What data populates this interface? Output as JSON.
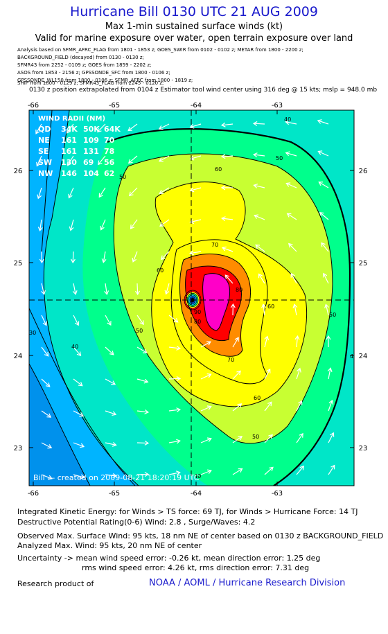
{
  "header": {
    "title": "Hurricane Bill 0130 UTC 21 AUG 2009",
    "subtitle": "Max 1-min sustained surface winds (kt)",
    "validity": "Valid for marine exposure over water, open terrain exposure over land"
  },
  "analysis_sources": [
    "Analysis based on  SFMR_AFRC_FLAG from 1801 - 1853 z;  GOES_SWIR from 0102 - 0102 z;  METAR from 1800 - 2200 z;",
    "BACKGROUND_FIELD (decayed) from 0130 - 0130 z;",
    "SFMR43 from 2252 - 0109 z;  GOES from 1859 - 2202 z;",
    "ASOS from 1853 - 2156 z;  GPSSONDE_SFC from 1800 - 0106 z;",
    "GPSSONDE_WL150 from 1800 - 0106 z;  SFMR_AFRC from 1800 - 1819 z;",
    "SHIP from 1800 - 0129 z;  SFMR43_FLAG from 2245 - 0120 z;"
  ],
  "position_note": "0130 z position extrapolated from 0104 z Estimator tool wind center using 316 deg @ 15 kts; mslp = 948.0 mb",
  "map": {
    "lon_ticks": [
      "-66",
      "-65",
      "-64",
      "-63"
    ],
    "lat_ticks": [
      "26",
      "25",
      "24",
      "23"
    ],
    "center": {
      "lon": -64.06,
      "lat": 24.6
    },
    "wind_radii_table": [
      [
        "WIND RADII (NM)"
      ],
      [
        "QD",
        "34K",
        "50K",
        "64K"
      ],
      [
        "NE",
        "161",
        "109",
        "70"
      ],
      [
        "SE",
        "161",
        "131",
        "78"
      ],
      [
        "SW",
        "130",
        "69",
        "56"
      ],
      [
        "NW",
        "146",
        "104",
        "62"
      ]
    ],
    "contour_labels": [
      "40",
      "40",
      "40",
      "40",
      "50",
      "50",
      "50",
      "50",
      "50",
      "60",
      "60",
      "60",
      "60",
      "70",
      "70",
      "80",
      "80",
      "90",
      "30"
    ],
    "credit": "Bill — created on 2009-08-21 18:20:19 UTC",
    "colors": {
      "band_30": "#00b4ff",
      "band_40": "#00e6c8",
      "band_50": "#00ff8c",
      "band_60": "#c8ff32",
      "band_70": "#ffff00",
      "band_80": "#ff8c00",
      "band_90": "#ff0000",
      "band_100": "#ff00c8"
    }
  },
  "footer": {
    "ike": "Integrated Kinetic Energy:  for Winds > TS force: 69 TJ,  for Winds > Hurricane Force: 14 TJ",
    "dpr": "Destructive Potential Rating(0-6)   Wind: 2.8 , Surge/Waves: 4.2",
    "observed": "Observed Max. Surface Wind: 95 kts, 18 nm NE of center based on 0130 z BACKGROUND_FIELD",
    "analyzed": "Analyzed Max. Wind: 95 kts, 20 nm NE of center",
    "uncertainty_mean": "Uncertainty -> mean wind speed error:  -0.26 kt,   mean direction error: 1.25 deg",
    "uncertainty_rms": "rms wind speed error: 4.26 kt,   rms direction error: 7.31 deg",
    "research": "Research product of",
    "org": "NOAA / AOML / Hurricane Research Division"
  }
}
